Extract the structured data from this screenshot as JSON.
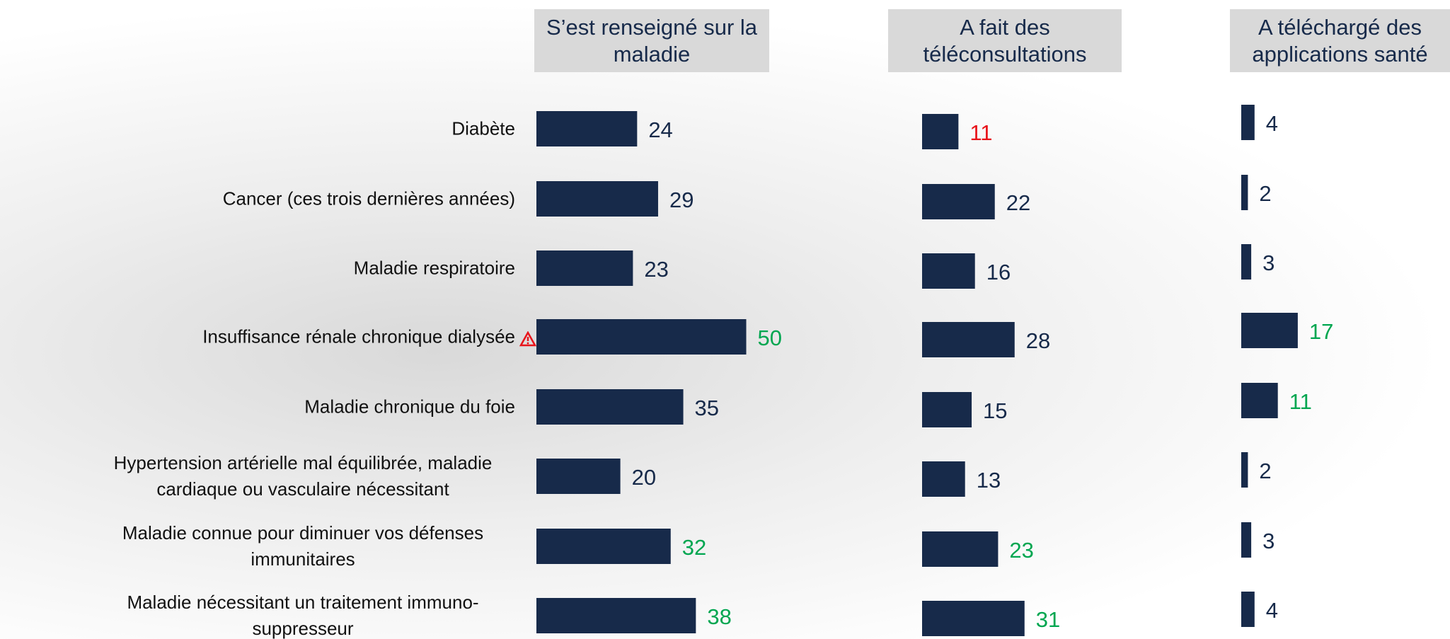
{
  "chart_data": {
    "type": "bar",
    "categories": [
      "Diabète",
      "Cancer (ces trois dernières années)",
      "Maladie respiratoire",
      "Insuffisance rénale chronique dialysée",
      "Maladie chronique du foie",
      "Hypertension artérielle mal équilibrée, maladie cardiaque ou vasculaire nécessitant",
      "Maladie connue pour diminuer vos défenses immunitaires",
      "Maladie nécessitant un traitement immuno-suppresseur"
    ],
    "series": [
      {
        "name": "S’est renseigné sur la maladie",
        "color": "#172a4a",
        "values": [
          24,
          29,
          23,
          50,
          35,
          20,
          32,
          38
        ],
        "label_colors": [
          "#172a4a",
          "#172a4a",
          "#172a4a",
          "#00a650",
          "#172a4a",
          "#172a4a",
          "#00a650",
          "#00a650"
        ]
      },
      {
        "name": "A fait des téléconsultations",
        "color": "#172a4a",
        "values": [
          11,
          22,
          16,
          28,
          15,
          13,
          23,
          31
        ],
        "label_colors": [
          "#e8141b",
          "#172a4a",
          "#172a4a",
          "#172a4a",
          "#172a4a",
          "#172a4a",
          "#00a650",
          "#00a650"
        ]
      },
      {
        "name": "A téléchargé des applications santé",
        "color": "#172a4a",
        "values": [
          4,
          2,
          3,
          17,
          11,
          2,
          3,
          4
        ],
        "label_colors": [
          "#172a4a",
          "#172a4a",
          "#172a4a",
          "#00a650",
          "#00a650",
          "#172a4a",
          "#172a4a",
          "#172a4a"
        ]
      }
    ]
  }
}
